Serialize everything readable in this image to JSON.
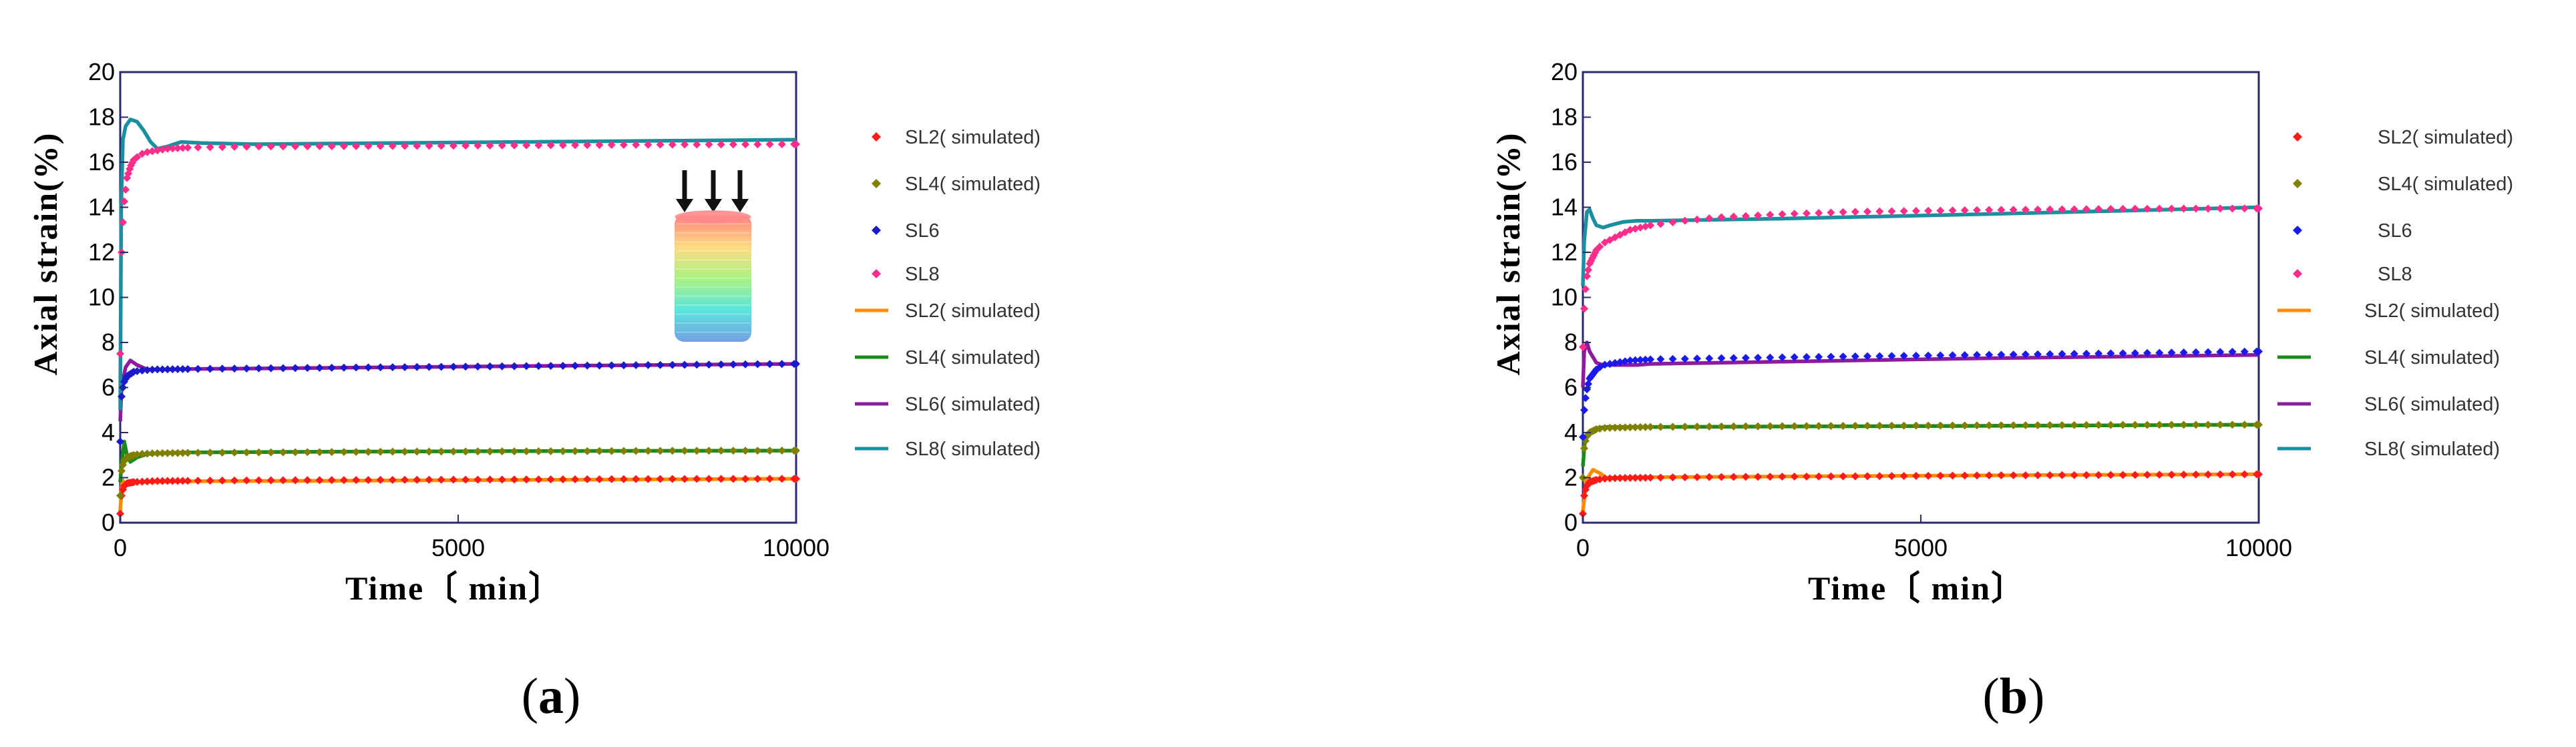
{
  "chart_data": [
    {
      "type": "line",
      "panel_label": [
        "(",
        "a",
        ")"
      ],
      "xlabel": "Time〔 min〕",
      "ylabel": "Axial strain(%)",
      "xlim": [
        0,
        10000
      ],
      "ylim": [
        0,
        20
      ],
      "xticks": [
        0,
        5000,
        10000
      ],
      "yticks": [
        0,
        2,
        4,
        6,
        8,
        10,
        12,
        14,
        16,
        18,
        20
      ],
      "has_inset_icon": true,
      "series": [
        {
          "name": "SL2( simulated)",
          "kind": "points",
          "color": "#ff1a1a",
          "x": [
            0,
            20,
            50,
            100,
            200,
            300,
            500,
            1000,
            2000,
            4000,
            6000,
            8000,
            10000
          ],
          "y": [
            0.4,
            1.2,
            1.6,
            1.75,
            1.8,
            1.82,
            1.85,
            1.86,
            1.88,
            1.9,
            1.92,
            1.94,
            1.95
          ]
        },
        {
          "name": "SL4( simulated)",
          "kind": "points",
          "color": "#808000",
          "x": [
            0,
            20,
            50,
            100,
            200,
            300,
            500,
            1000,
            2000,
            4000,
            6000,
            8000,
            10000
          ],
          "y": [
            1.2,
            2.3,
            2.7,
            2.9,
            3.0,
            3.05,
            3.08,
            3.1,
            3.12,
            3.15,
            3.17,
            3.19,
            3.2
          ]
        },
        {
          "name": "SL6",
          "kind": "points",
          "color": "#1a1acc",
          "x": [
            0,
            20,
            50,
            100,
            200,
            300,
            500,
            1000,
            2000,
            4000,
            6000,
            8000,
            10000
          ],
          "y": [
            3.6,
            5.6,
            6.2,
            6.5,
            6.7,
            6.75,
            6.8,
            6.82,
            6.85,
            6.9,
            6.95,
            7.0,
            7.05
          ]
        },
        {
          "name": "SL8",
          "kind": "points",
          "color": "#ff2d8a",
          "x": [
            0,
            20,
            50,
            100,
            150,
            200,
            300,
            400,
            500,
            700,
            1000,
            2000,
            4000,
            6000,
            8000,
            10000
          ],
          "y": [
            7.5,
            12.0,
            14.0,
            15.3,
            15.8,
            16.1,
            16.35,
            16.45,
            16.5,
            16.6,
            16.65,
            16.7,
            16.72,
            16.75,
            16.78,
            16.8
          ]
        },
        {
          "name": "SL2( simulated)",
          "kind": "line",
          "color": "#ff8c00",
          "x": [
            0,
            30,
            80,
            150,
            300,
            600,
            1000,
            3000,
            6000,
            10000
          ],
          "y": [
            0.5,
            1.9,
            1.7,
            1.75,
            1.8,
            1.82,
            1.84,
            1.86,
            1.9,
            1.95
          ]
        },
        {
          "name": "SL4( simulated)",
          "kind": "line",
          "color": "#1a8a1a",
          "x": [
            0,
            20,
            60,
            100,
            150,
            250,
            400,
            700,
            1000,
            3000,
            6000,
            10000
          ],
          "y": [
            1.8,
            2.6,
            3.6,
            3.0,
            2.7,
            2.9,
            3.05,
            3.1,
            3.12,
            3.15,
            3.18,
            3.2
          ]
        },
        {
          "name": "SL6( simulated)",
          "kind": "line",
          "color": "#8e1a9e",
          "x": [
            0,
            20,
            80,
            150,
            250,
            400,
            700,
            1000,
            3000,
            6000,
            10000
          ],
          "y": [
            4.5,
            6.0,
            6.9,
            7.2,
            7.0,
            6.8,
            6.8,
            6.82,
            6.87,
            6.95,
            7.05
          ]
        },
        {
          "name": "SL8( simulated)",
          "kind": "line",
          "color": "#1a8fa0",
          "x": [
            0,
            15,
            40,
            80,
            150,
            250,
            350,
            450,
            550,
            700,
            900,
            1200,
            2000,
            4000,
            6000,
            8000,
            10000
          ],
          "y": [
            5.0,
            14.0,
            17.0,
            17.6,
            17.9,
            17.8,
            17.4,
            16.9,
            16.6,
            16.7,
            16.9,
            16.85,
            16.8,
            16.85,
            16.9,
            16.95,
            17.0
          ]
        }
      ]
    },
    {
      "type": "line",
      "panel_label": [
        "(",
        "b",
        ")"
      ],
      "xlabel": "Time〔 min〕",
      "ylabel": "Axial strain(%)",
      "xlim": [
        0,
        10000
      ],
      "ylim": [
        0,
        20
      ],
      "xticks": [
        0,
        5000,
        10000
      ],
      "yticks": [
        0,
        2,
        4,
        6,
        8,
        10,
        12,
        14,
        16,
        18,
        20
      ],
      "has_inset_icon": false,
      "series": [
        {
          "name": "SL2( simulated)",
          "kind": "points",
          "color": "#ff1a1a",
          "x": [
            0,
            20,
            50,
            100,
            200,
            300,
            500,
            1000,
            2000,
            4000,
            6000,
            8000,
            10000
          ],
          "y": [
            0.4,
            1.2,
            1.6,
            1.8,
            1.9,
            1.95,
            1.98,
            2.0,
            2.03,
            2.06,
            2.1,
            2.12,
            2.15
          ]
        },
        {
          "name": "SL4( simulated)",
          "kind": "points",
          "color": "#808000",
          "x": [
            0,
            20,
            50,
            100,
            200,
            300,
            500,
            1000,
            2000,
            4000,
            6000,
            8000,
            10000
          ],
          "y": [
            2.0,
            3.3,
            3.8,
            4.0,
            4.15,
            4.2,
            4.22,
            4.25,
            4.27,
            4.3,
            4.32,
            4.34,
            4.35
          ]
        },
        {
          "name": "SL6",
          "kind": "points",
          "color": "#1a1aee",
          "x": [
            0,
            20,
            50,
            100,
            200,
            300,
            500,
            700,
            1000,
            2000,
            4000,
            6000,
            8000,
            10000
          ],
          "y": [
            3.8,
            5.0,
            5.8,
            6.4,
            6.8,
            7.0,
            7.1,
            7.2,
            7.25,
            7.3,
            7.38,
            7.45,
            7.52,
            7.6
          ]
        },
        {
          "name": "SL8",
          "kind": "points",
          "color": "#ff2d8a",
          "x": [
            0,
            20,
            50,
            100,
            200,
            300,
            500,
            700,
            1000,
            1500,
            2000,
            3000,
            4000,
            6000,
            8000,
            10000
          ],
          "y": [
            7.8,
            9.5,
            10.8,
            11.5,
            12.1,
            12.4,
            12.7,
            13.0,
            13.2,
            13.4,
            13.55,
            13.7,
            13.8,
            13.88,
            13.93,
            13.95
          ]
        },
        {
          "name": "SL2( simulated)",
          "kind": "line",
          "color": "#ff8c00",
          "x": [
            0,
            50,
            150,
            250,
            350,
            500,
            1000,
            3000,
            6000,
            10000
          ],
          "y": [
            0.5,
            1.9,
            2.35,
            2.2,
            2.0,
            2.0,
            2.02,
            2.05,
            2.1,
            2.15
          ]
        },
        {
          "name": "SL4( simulated)",
          "kind": "line",
          "color": "#1a8a1a",
          "x": [
            0,
            30,
            100,
            200,
            350,
            500,
            1000,
            3000,
            6000,
            10000
          ],
          "y": [
            2.5,
            3.6,
            4.0,
            4.2,
            4.25,
            4.25,
            4.25,
            4.27,
            4.3,
            4.35
          ]
        },
        {
          "name": "SL6( simulated)",
          "kind": "line",
          "color": "#8e1a9e",
          "x": [
            0,
            20,
            60,
            100,
            200,
            300,
            500,
            800,
            1000,
            3000,
            6000,
            10000
          ],
          "y": [
            6.0,
            7.6,
            8.0,
            7.6,
            7.1,
            7.0,
            7.0,
            7.0,
            7.05,
            7.15,
            7.3,
            7.45
          ]
        },
        {
          "name": "SL8( simulated)",
          "kind": "line",
          "color": "#1a8fa0",
          "x": [
            0,
            20,
            60,
            100,
            150,
            200,
            300,
            400,
            600,
            800,
            1000,
            3000,
            6000,
            8000,
            10000
          ],
          "y": [
            10.5,
            12.5,
            13.8,
            13.9,
            13.5,
            13.2,
            13.1,
            13.2,
            13.35,
            13.4,
            13.4,
            13.5,
            13.7,
            13.85,
            14.0
          ]
        }
      ]
    }
  ]
}
